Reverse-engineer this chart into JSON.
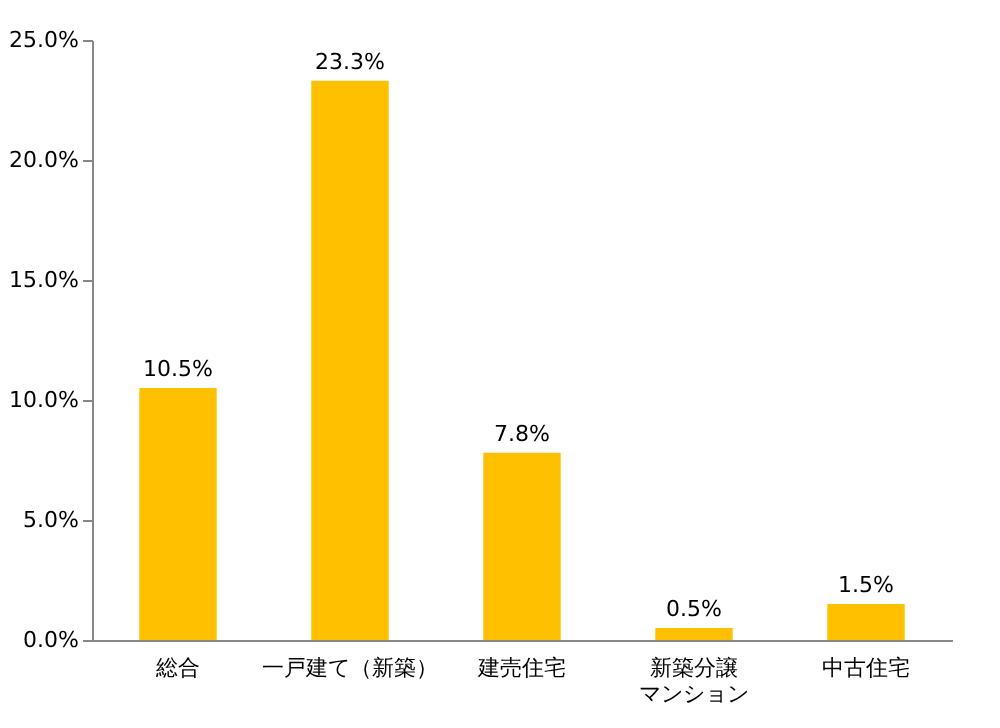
{
  "chart_data": {
    "type": "bar",
    "categories": [
      "総合",
      "一戸建て（新築）",
      "建売住宅",
      "新築分譲マンション",
      "中古住宅"
    ],
    "values": [
      10.5,
      23.3,
      7.8,
      0.5,
      1.5
    ],
    "value_labels": [
      "10.5%",
      "23.3%",
      "7.8%",
      "0.5%",
      "1.5%"
    ],
    "color": "#ffc000",
    "ylim": [
      0,
      25
    ],
    "yticks": [
      {
        "value": 0,
        "label": "0.0%"
      },
      {
        "value": 5,
        "label": "5.0%"
      },
      {
        "value": 10,
        "label": "10.0%"
      },
      {
        "value": 15,
        "label": "15.0%"
      },
      {
        "value": 20,
        "label": "20.0%"
      },
      {
        "value": 25,
        "label": "25.0%"
      }
    ],
    "grid": false
  }
}
